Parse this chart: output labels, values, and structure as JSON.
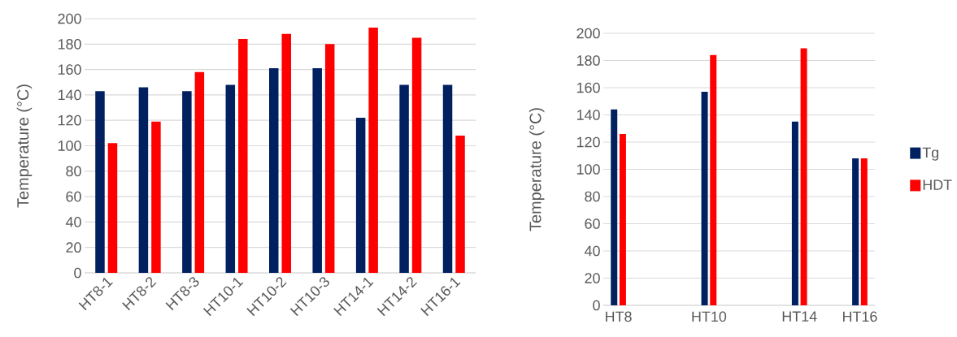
{
  "chart_data": [
    {
      "type": "bar",
      "ylabel": "Temperature (°C)",
      "categories": [
        "HT8-1",
        "HT8-2",
        "HT8-3",
        "HT10-1",
        "HT10-2",
        "HT10-3",
        "HT14-1",
        "HT14-2",
        "HT16-1"
      ],
      "series": [
        {
          "color": "#002060",
          "values": [
            143,
            146,
            143,
            148,
            161,
            161,
            122,
            148,
            148
          ]
        },
        {
          "color": "#ff0000",
          "values": [
            102,
            119,
            158,
            184,
            188,
            180,
            193,
            185,
            108
          ]
        }
      ],
      "ylim": [
        0,
        200
      ],
      "yticks": [
        0,
        20,
        40,
        60,
        80,
        100,
        120,
        140,
        160,
        180,
        200
      ],
      "grid": "y"
    },
    {
      "type": "bar",
      "ylabel": "Temperature (°C)",
      "categories": [
        "HT8",
        null,
        null,
        "HT10",
        null,
        null,
        "HT14",
        null,
        "HT16"
      ],
      "series": [
        {
          "name": "Tg",
          "color": "#002060",
          "values": [
            144,
            null,
            null,
            157,
            null,
            null,
            135,
            null,
            108
          ]
        },
        {
          "name": "HDT",
          "color": "#ff0000",
          "values": [
            126,
            null,
            null,
            184,
            null,
            null,
            189,
            null,
            108
          ]
        }
      ],
      "ylim": [
        0,
        200
      ],
      "yticks": [
        0,
        20,
        40,
        60,
        80,
        100,
        120,
        140,
        160,
        180,
        200
      ],
      "grid": "y",
      "legend": "right"
    }
  ]
}
